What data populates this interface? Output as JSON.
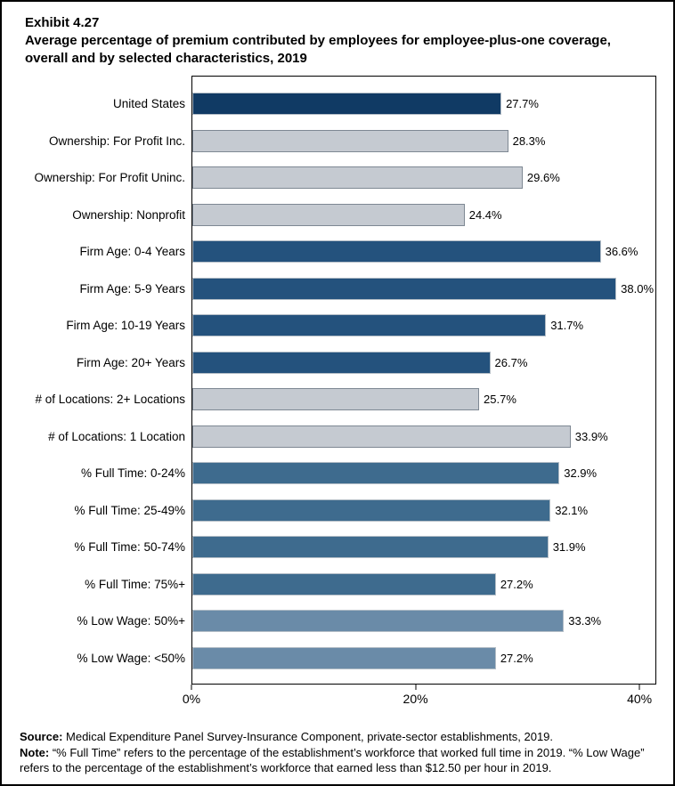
{
  "header": {
    "exhibit": "Exhibit 4.27",
    "title": "Average percentage of premium contributed by employees for employee-plus-one coverage, overall and by selected characteristics, 2019"
  },
  "chart_data": {
    "type": "bar",
    "orientation": "horizontal",
    "title": "Average percentage of premium contributed by employees for employee-plus-one coverage, overall and by selected characteristics, 2019",
    "categories": [
      "United States",
      "Ownership: For Profit Inc.",
      "Ownership: For Profit Uninc.",
      "Ownership: Nonprofit",
      "Firm Age: 0-4 Years",
      "Firm Age: 5-9 Years",
      "Firm Age: 10-19 Years",
      "Firm Age: 20+ Years",
      "# of Locations: 2+ Locations",
      "# of Locations: 1 Location",
      "% Full Time: 0-24%",
      "% Full Time: 25-49%",
      "% Full Time: 50-74%",
      "% Full Time: 75%+",
      "% Low Wage: 50%+",
      "% Low Wage: <50%"
    ],
    "values": [
      27.7,
      28.3,
      29.6,
      24.4,
      36.6,
      38.0,
      31.7,
      26.7,
      25.7,
      33.9,
      32.9,
      32.1,
      31.9,
      27.2,
      33.3,
      27.2
    ],
    "value_labels": [
      "27.7%",
      "28.3%",
      "29.6%",
      "24.4%",
      "36.6%",
      "38.0%",
      "31.7%",
      "26.7%",
      "25.7%",
      "33.9%",
      "32.9%",
      "32.1%",
      "31.9%",
      "27.2%",
      "33.3%",
      "27.2%"
    ],
    "color_groups": [
      "overall",
      "ownership",
      "ownership",
      "ownership",
      "firm_age",
      "firm_age",
      "firm_age",
      "firm_age",
      "locations",
      "locations",
      "full_time",
      "full_time",
      "full_time",
      "full_time",
      "low_wage",
      "low_wage"
    ],
    "xlim": [
      0,
      41.5
    ],
    "x_ticks": [
      {
        "value": 0,
        "label": "0%"
      },
      {
        "value": 20,
        "label": "20%"
      },
      {
        "value": 40,
        "label": "40%"
      }
    ],
    "grid": false,
    "legend": false
  },
  "colors": {
    "overall": {
      "fill": "#103A64",
      "border": "#B3BDC6"
    },
    "ownership": {
      "fill": "#C5CAD1",
      "border": "#7E8893"
    },
    "firm_age": {
      "fill": "#24527D",
      "border": "#B3BDC6"
    },
    "locations": {
      "fill": "#C5CAD1",
      "border": "#7E8893"
    },
    "full_time": {
      "fill": "#3E6B8E",
      "border": "#B3BDC6"
    },
    "low_wage": {
      "fill": "#6A8BA8",
      "border": "#B3BDC6"
    },
    "axis_line": "#000000"
  },
  "footer": {
    "source_label": "Source:",
    "source_text": " Medical Expenditure Panel Survey-Insurance Component, private-sector establishments, 2019.",
    "note_label": "Note:",
    "note_text": " “% Full Time” refers to the percentage of the establishment’s workforce that worked full time in 2019. “% Low Wage” refers to the percentage of the establishment’s workforce that earned less than $12.50 per hour in 2019."
  }
}
